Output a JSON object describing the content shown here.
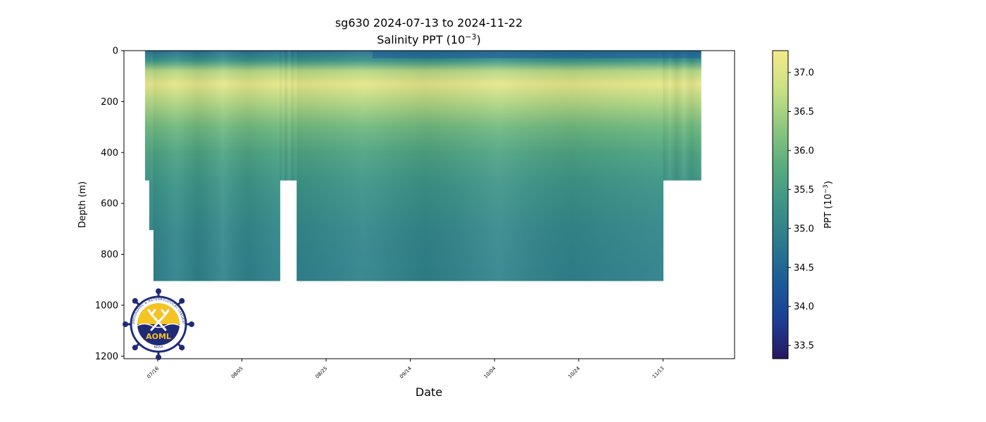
{
  "chart_data": {
    "type": "heatmap",
    "title": "sg630 2024-07-13 to 2024-11-22",
    "subtitle_prefix": "Salinity PPT (10",
    "subtitle_exp": "−3",
    "subtitle_suffix": ")",
    "xlabel": "Date",
    "ylabel": "Depth (m)",
    "x_start": "2024-07-13",
    "x_end": "2024-11-22",
    "xlim": [
      "2024-07-08",
      "2024-11-30"
    ],
    "ylim": [
      1210,
      0
    ],
    "y_inverted": true,
    "x_ticks": [
      {
        "date": "2024-07-16",
        "label": "07/16"
      },
      {
        "date": "2024-08-05",
        "label": "08/05"
      },
      {
        "date": "2024-08-25",
        "label": "08/25"
      },
      {
        "date": "2024-09-14",
        "label": "09/14"
      },
      {
        "date": "2024-10-04",
        "label": "10/04"
      },
      {
        "date": "2024-10-24",
        "label": "10/24"
      },
      {
        "date": "2024-11-13",
        "label": "11/13"
      }
    ],
    "y_ticks": [
      0,
      200,
      400,
      600,
      800,
      1000,
      1200
    ],
    "grid": false,
    "colorbar": {
      "label_prefix": "PPT (10",
      "label_exp": "−3",
      "label_suffix": ")",
      "min": 33.33,
      "max": 37.28,
      "ticks": [
        "33.5",
        "34.0",
        "34.5",
        "35.0",
        "35.5",
        "36.0",
        "36.5",
        "37.0"
      ],
      "colormap": [
        "#26185f",
        "#1d3e96",
        "#1b5c98",
        "#2a7a8e",
        "#3c9487",
        "#58ad7e",
        "#8ec77e",
        "#c9e184",
        "#f6e98c"
      ]
    },
    "salinity_profile": [
      {
        "depth": 0,
        "value": 34.6
      },
      {
        "depth": 40,
        "value": 35.3
      },
      {
        "depth": 80,
        "value": 36.6
      },
      {
        "depth": 130,
        "value": 37.1
      },
      {
        "depth": 200,
        "value": 36.6
      },
      {
        "depth": 300,
        "value": 36.0
      },
      {
        "depth": 400,
        "value": 35.6
      },
      {
        "depth": 520,
        "value": 35.3
      },
      {
        "depth": 700,
        "value": 35.05
      },
      {
        "depth": 910,
        "value": 34.95
      }
    ],
    "coverage_segments": [
      {
        "from": "2024-07-13",
        "to": "2024-07-14",
        "max_depth": 510
      },
      {
        "from": "2024-07-14",
        "to": "2024-07-15",
        "max_depth": 705
      },
      {
        "from": "2024-07-15",
        "to": "2024-08-14",
        "max_depth": 905
      },
      {
        "from": "2024-08-14",
        "to": "2024-08-18",
        "max_depth": 510
      },
      {
        "from": "2024-08-18",
        "to": "2024-11-13",
        "max_depth": 905
      },
      {
        "from": "2024-11-13",
        "to": "2024-11-22",
        "max_depth": 510
      }
    ],
    "gap_segment": {
      "from": "2024-08-14",
      "to": "2024-08-18",
      "min_depth": 515,
      "max_depth": 905
    }
  },
  "logo": {
    "text": "AOML",
    "ring_text": "OCEANOGRAPHIC & METEOROLOGICAL LABORATORY",
    "bottom_text": "NOAA",
    "colors": {
      "navy": "#1e2a78",
      "gold": "#f6c324",
      "ring": "#ffffff"
    }
  }
}
